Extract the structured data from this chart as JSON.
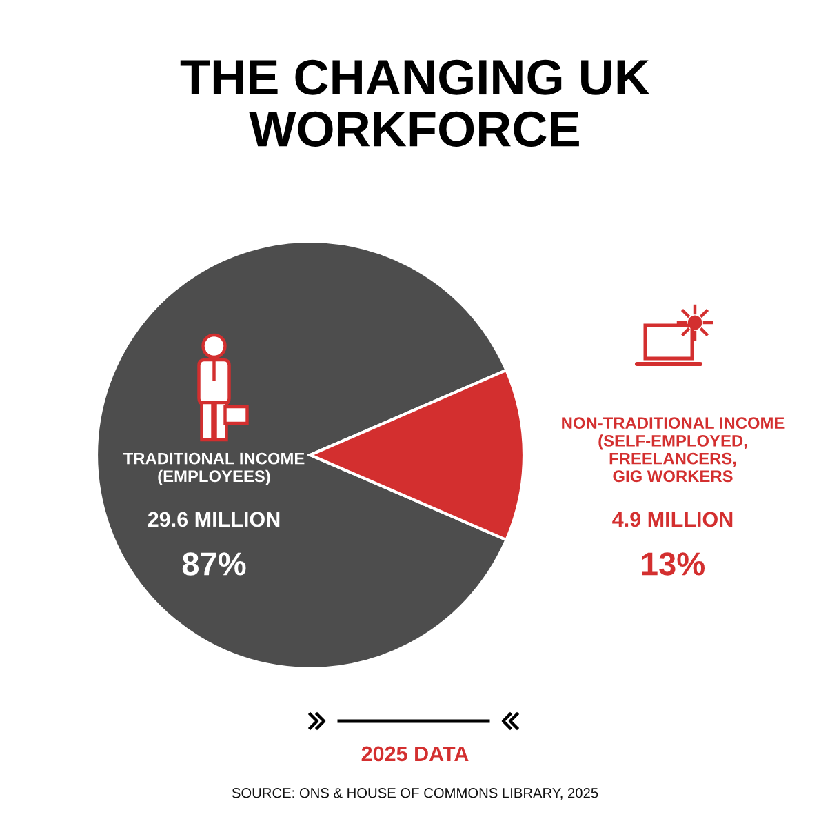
{
  "chart_data": {
    "type": "pie",
    "title": "THE CHANGING UK\nWORKFORCE",
    "categories": [
      "TRADITIONAL INCOME\n(EMPLOYEES)",
      "NON-TRADITIONAL INCOME\n(SELF-EMPLOYED,\nFREELANCERS,\nGIG WORKERS"
    ],
    "values": [
      87,
      13
    ],
    "colors": [
      "#4d4d4d",
      "#d32f2f"
    ],
    "value_labels": [
      "29.6 MILLION\n87%",
      "4.9 MILLION\n13%"
    ],
    "annotations": [
      "2025 DATA",
      "SOURCE: ONS & HOUSE OF COMMONS LIBRARY, 2025"
    ]
  }
}
